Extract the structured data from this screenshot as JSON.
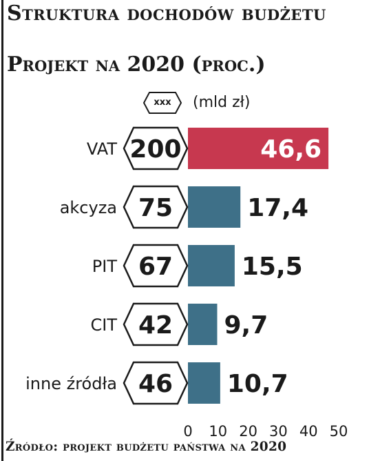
{
  "title": "Struktura dochodów budżetu",
  "subtitle": "Projekt na 2020 (proc.)",
  "legend": {
    "tag": "xxx",
    "unit": "(mld zł)"
  },
  "source": "Źródło: projekt budżetu państwa na 2020",
  "colors": {
    "highlight": "#c7384f",
    "bar": "#3e7088",
    "text": "#1a1a1a"
  },
  "chart_data": {
    "type": "bar",
    "orientation": "horizontal",
    "categories": [
      "VAT",
      "akcyza",
      "PIT",
      "CIT",
      "inne źródła"
    ],
    "values": [
      46.6,
      17.4,
      15.5,
      9.7,
      10.7
    ],
    "values_display": [
      "46,6",
      "17,4",
      "15,5",
      "9,7",
      "10,7"
    ],
    "amounts_mld_zl": [
      "200",
      "75",
      "67",
      "42",
      "46"
    ],
    "highlight_index": 0,
    "xlim": [
      0,
      50
    ],
    "xticks": [
      "0",
      "10",
      "20",
      "30",
      "40",
      "50"
    ],
    "grid": false,
    "legend": "top"
  }
}
